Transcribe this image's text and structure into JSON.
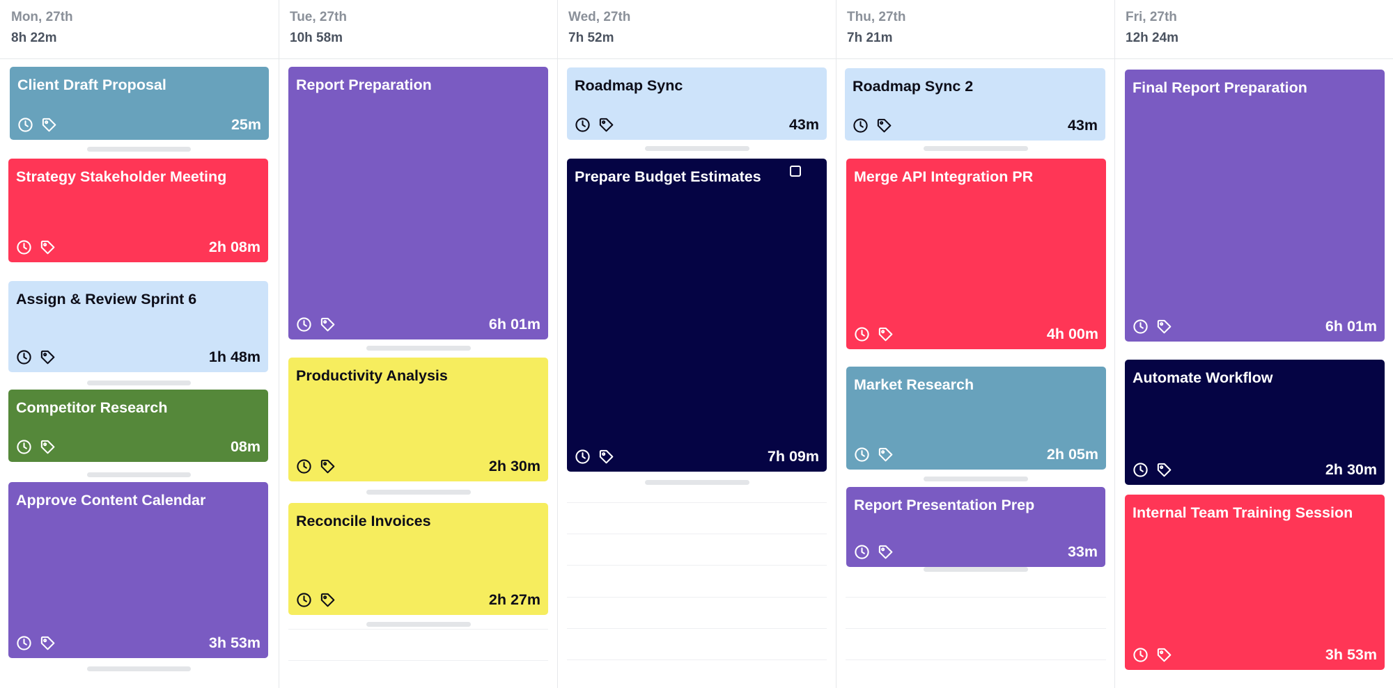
{
  "colors": {
    "steel": "#68a2bc",
    "red": "#ff3656",
    "lightblue": "#cde3fa",
    "green": "#55883a",
    "purple": "#7a5bc2",
    "yellow": "#f6ed5e",
    "navy": "#050444"
  },
  "icons": {
    "clock": "clock-icon",
    "tag": "tag-icon",
    "checkbox": "checkbox-icon"
  },
  "days": [
    {
      "date": "Mon, 27th",
      "total": "8h 22m",
      "cards": [
        {
          "title": "Client Draft Proposal",
          "duration": "25m",
          "color": "steel",
          "text": "light"
        },
        {
          "title": "Strategy Stakeholder Meeting",
          "duration": "2h 08m",
          "color": "red",
          "text": "light"
        },
        {
          "title": "Assign & Review Sprint 6",
          "duration": "1h 48m",
          "color": "lightblue",
          "text": "dark"
        },
        {
          "title": "Competitor Research",
          "duration": "08m",
          "color": "green",
          "text": "light"
        },
        {
          "title": "Approve Content Calendar",
          "duration": "3h 53m",
          "color": "purple",
          "text": "light"
        }
      ]
    },
    {
      "date": "Tue, 27th",
      "total": "10h 58m",
      "cards": [
        {
          "title": "Report Preparation",
          "duration": "6h 01m",
          "color": "purple",
          "text": "light"
        },
        {
          "title": "Productivity Analysis",
          "duration": "2h 30m",
          "color": "yellow",
          "text": "dark"
        },
        {
          "title": "Reconcile Invoices",
          "duration": "2h 27m",
          "color": "yellow",
          "text": "dark"
        }
      ]
    },
    {
      "date": "Wed, 27th",
      "total": "7h 52m",
      "cards": [
        {
          "title": "Roadmap Sync",
          "duration": "43m",
          "color": "lightblue",
          "text": "dark"
        },
        {
          "title": "Prepare Budget Estimates",
          "duration": "7h 09m",
          "color": "navy",
          "text": "light",
          "checkbox": true
        }
      ]
    },
    {
      "date": "Thu, 27th",
      "total": "7h 21m",
      "cards": [
        {
          "title": "Roadmap Sync 2",
          "duration": "43m",
          "color": "lightblue",
          "text": "dark"
        },
        {
          "title": "Merge API Integration PR",
          "duration": "4h 00m",
          "color": "red",
          "text": "light"
        },
        {
          "title": "Market Research",
          "duration": "2h 05m",
          "color": "steel",
          "text": "light"
        },
        {
          "title": "Report Presentation Prep",
          "duration": "33m",
          "color": "purple",
          "text": "light"
        }
      ]
    },
    {
      "date": "Fri, 27th",
      "total": "12h 24m",
      "cards": [
        {
          "title": "Final Report Preparation",
          "duration": "6h 01m",
          "color": "purple",
          "text": "light"
        },
        {
          "title": "Automate Workflow",
          "duration": "2h 30m",
          "color": "navy",
          "text": "light"
        },
        {
          "title": "Internal Team Training Session",
          "duration": "3h 53m",
          "color": "red",
          "text": "light"
        }
      ]
    }
  ]
}
